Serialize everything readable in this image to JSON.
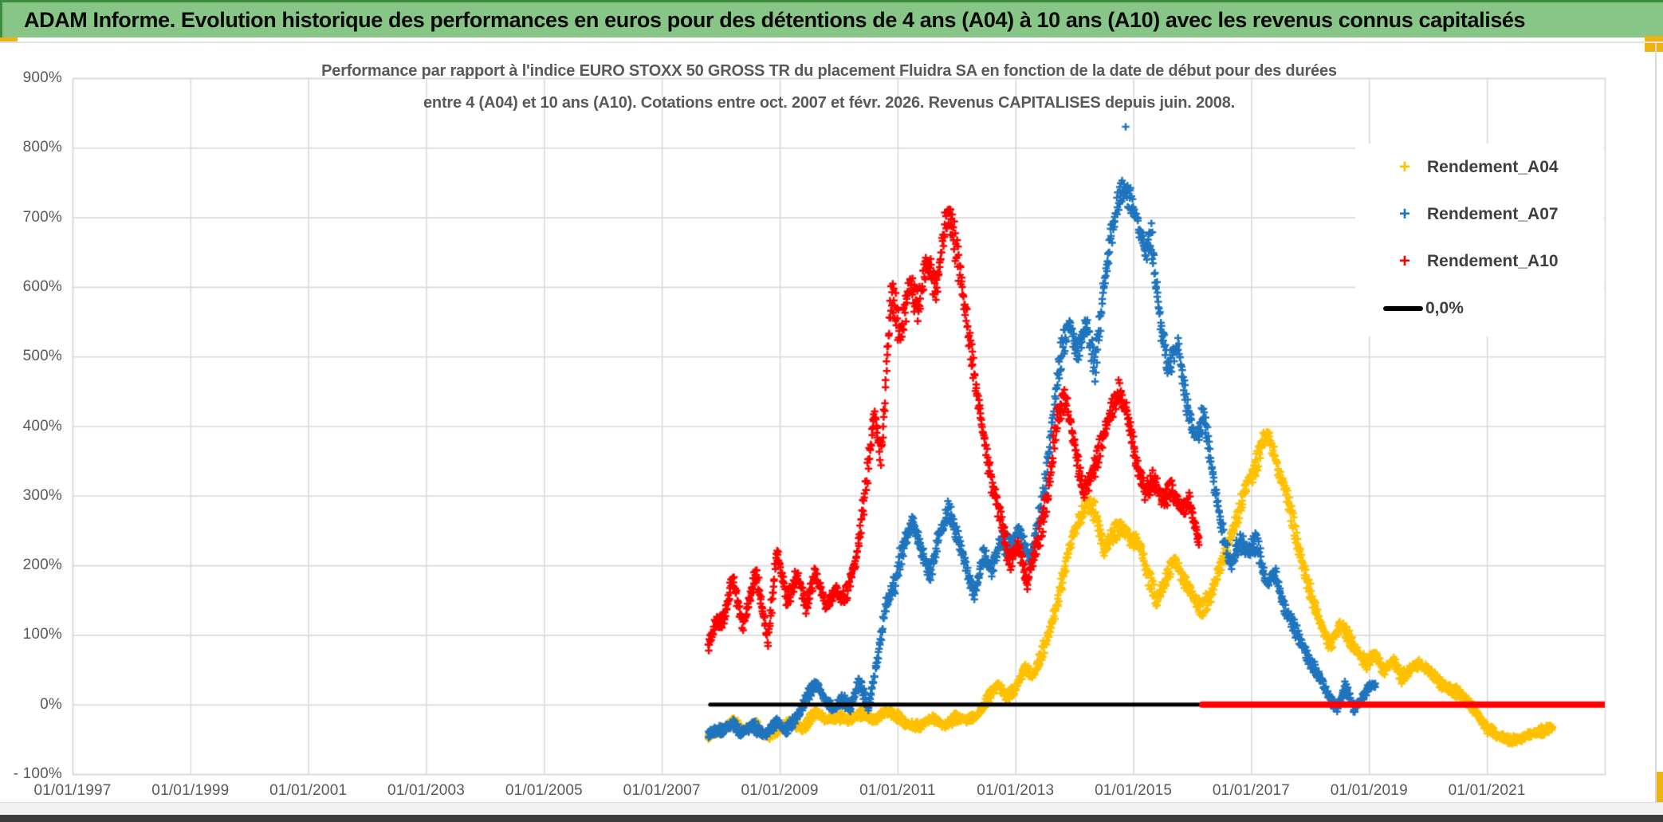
{
  "banner": {
    "title": "ADAM Informe. Evolution historique des performances en euros pour des détentions de 4 ans (A04) à 10 ans (A10) avec les revenus connus capitalisés"
  },
  "colors": {
    "banner_bg": "#87C687",
    "banner_border": "#3C8C40",
    "accent_gold": "#EFB30E",
    "grid": "#D9D9D9",
    "tick_text": "#595959",
    "title_text": "#595959",
    "legend_text": "#3F3F3F",
    "series_a04": "#FFC000",
    "series_a07": "#1F74BD",
    "series_a10": "#FF0000",
    "zero_line": "#000000"
  },
  "chart_data": {
    "type": "scatter",
    "title_line1": "Performance par rapport à l'indice EURO STOXX 50 GROSS TR  du placement Fluidra SA en fonction de la date de début pour des durées",
    "title_line2": "entre 4 (A04) et 10 ans (A10). Cotations entre oct. 2007 et févr. 2026. Revenus CAPITALISES depuis juin. 2008.",
    "x_axis": {
      "tick_labels": [
        "01/01/1997",
        "01/01/1999",
        "01/01/2001",
        "01/01/2003",
        "01/01/2005",
        "01/01/2007",
        "01/01/2009",
        "01/01/2011",
        "01/01/2013",
        "01/01/2015",
        "01/01/2017",
        "01/01/2019",
        "01/01/2021"
      ],
      "start_year": 1997,
      "end_year": 2023,
      "tick_step_years": 2,
      "grid": true
    },
    "y_axis": {
      "tick_labels": [
        "900%",
        "800%",
        "700%",
        "600%",
        "500%",
        "400%",
        "300%",
        "200%",
        "100%",
        "0%",
        "- 100%"
      ],
      "min": -100,
      "max": 900,
      "step": 100,
      "unit": "%",
      "grid": true
    },
    "legend": [
      {
        "label": "Rendement_A04",
        "marker": "+",
        "color": "#FFC000"
      },
      {
        "label": "Rendement_A07",
        "marker": "+",
        "color": "#1F74BD"
      },
      {
        "label": "Rendement_A10",
        "marker": "+",
        "color": "#FF0000"
      },
      {
        "label": "0,0%",
        "marker": "line",
        "color": "#000000"
      }
    ],
    "series": [
      {
        "name": "Rendement_A04",
        "color": "#FFC000",
        "points": [
          [
            2007.79,
            -48,
            6
          ],
          [
            2008.0,
            -38,
            7
          ],
          [
            2008.2,
            -25,
            8
          ],
          [
            2008.4,
            -40,
            7
          ],
          [
            2008.6,
            -30,
            8
          ],
          [
            2008.8,
            -45,
            7
          ],
          [
            2009.0,
            -35,
            8
          ],
          [
            2009.2,
            -22,
            8
          ],
          [
            2009.4,
            -30,
            8
          ],
          [
            2009.6,
            -12,
            8
          ],
          [
            2009.8,
            -22,
            8
          ],
          [
            2010.0,
            -18,
            8
          ],
          [
            2010.2,
            -25,
            8
          ],
          [
            2010.4,
            -15,
            8
          ],
          [
            2010.6,
            -22,
            8
          ],
          [
            2010.8,
            -12,
            8
          ],
          [
            2011.0,
            -18,
            8
          ],
          [
            2011.2,
            -25,
            8
          ],
          [
            2011.4,
            -30,
            7
          ],
          [
            2011.6,
            -18,
            8
          ],
          [
            2011.8,
            -28,
            7
          ],
          [
            2012.0,
            -20,
            8
          ],
          [
            2012.2,
            -25,
            8
          ],
          [
            2012.4,
            -10,
            8
          ],
          [
            2012.55,
            10,
            9
          ],
          [
            2012.7,
            25,
            10
          ],
          [
            2012.85,
            10,
            9
          ],
          [
            2013.0,
            25,
            10
          ],
          [
            2013.15,
            55,
            11
          ],
          [
            2013.3,
            40,
            10
          ],
          [
            2013.5,
            90,
            12
          ],
          [
            2013.7,
            150,
            14
          ],
          [
            2013.9,
            220,
            16
          ],
          [
            2014.05,
            260,
            16
          ],
          [
            2014.2,
            295,
            16
          ],
          [
            2014.35,
            275,
            16
          ],
          [
            2014.5,
            215,
            16
          ],
          [
            2014.65,
            240,
            16
          ],
          [
            2014.8,
            255,
            16
          ],
          [
            2014.95,
            235,
            16
          ],
          [
            2015.1,
            225,
            16
          ],
          [
            2015.25,
            185,
            14
          ],
          [
            2015.4,
            155,
            14
          ],
          [
            2015.55,
            185,
            14
          ],
          [
            2015.7,
            210,
            14
          ],
          [
            2015.85,
            180,
            14
          ],
          [
            2016.0,
            165,
            14
          ],
          [
            2016.15,
            140,
            14
          ],
          [
            2016.3,
            150,
            14
          ],
          [
            2016.45,
            190,
            14
          ],
          [
            2016.6,
            225,
            16
          ],
          [
            2016.75,
            265,
            16
          ],
          [
            2016.9,
            300,
            16
          ],
          [
            2017.05,
            330,
            16
          ],
          [
            2017.2,
            380,
            16
          ],
          [
            2017.3,
            390,
            14
          ],
          [
            2017.45,
            340,
            16
          ],
          [
            2017.6,
            300,
            16
          ],
          [
            2017.75,
            250,
            16
          ],
          [
            2017.9,
            200,
            16
          ],
          [
            2018.05,
            150,
            14
          ],
          [
            2018.2,
            110,
            13
          ],
          [
            2018.35,
            85,
            12
          ],
          [
            2018.5,
            120,
            12
          ],
          [
            2018.65,
            95,
            12
          ],
          [
            2018.8,
            70,
            12
          ],
          [
            2018.95,
            55,
            11
          ],
          [
            2019.1,
            75,
            11
          ],
          [
            2019.25,
            45,
            10
          ],
          [
            2019.4,
            60,
            10
          ],
          [
            2019.55,
            40,
            10
          ],
          [
            2019.7,
            55,
            10
          ],
          [
            2019.85,
            60,
            10
          ],
          [
            2020.0,
            50,
            10
          ],
          [
            2020.2,
            35,
            10
          ],
          [
            2020.4,
            25,
            9
          ],
          [
            2020.6,
            10,
            9
          ],
          [
            2020.8,
            -10,
            9
          ],
          [
            2021.0,
            -35,
            8
          ],
          [
            2021.2,
            -50,
            7
          ],
          [
            2021.4,
            -52,
            7
          ],
          [
            2021.6,
            -48,
            7
          ],
          [
            2021.8,
            -42,
            7
          ],
          [
            2022.0,
            -35,
            7
          ],
          [
            2022.12,
            -30,
            6
          ]
        ]
      },
      {
        "name": "Rendement_A07",
        "color": "#1F74BD",
        "points": [
          [
            2007.79,
            -45,
            8
          ],
          [
            2008.0,
            -38,
            9
          ],
          [
            2008.2,
            -28,
            9
          ],
          [
            2008.35,
            -45,
            8
          ],
          [
            2008.55,
            -32,
            9
          ],
          [
            2008.75,
            -42,
            8
          ],
          [
            2008.95,
            -25,
            9
          ],
          [
            2009.1,
            -38,
            8
          ],
          [
            2009.3,
            -12,
            9
          ],
          [
            2009.5,
            20,
            10
          ],
          [
            2009.62,
            30,
            10
          ],
          [
            2009.75,
            10,
            10
          ],
          [
            2009.9,
            -5,
            9
          ],
          [
            2010.05,
            8,
            10
          ],
          [
            2010.2,
            -8,
            9
          ],
          [
            2010.35,
            30,
            10
          ],
          [
            2010.5,
            -5,
            10
          ],
          [
            2010.65,
            60,
            12
          ],
          [
            2010.8,
            140,
            14
          ],
          [
            2010.95,
            170,
            16
          ],
          [
            2011.1,
            235,
            18
          ],
          [
            2011.25,
            275,
            18
          ],
          [
            2011.4,
            225,
            16
          ],
          [
            2011.55,
            185,
            16
          ],
          [
            2011.7,
            250,
            18
          ],
          [
            2011.85,
            285,
            18
          ],
          [
            2012.0,
            240,
            16
          ],
          [
            2012.15,
            195,
            16
          ],
          [
            2012.3,
            155,
            14
          ],
          [
            2012.45,
            215,
            16
          ],
          [
            2012.6,
            185,
            16
          ],
          [
            2012.75,
            230,
            16
          ],
          [
            2012.9,
            225,
            16
          ],
          [
            2013.05,
            255,
            16
          ],
          [
            2013.25,
            205,
            16
          ],
          [
            2013.45,
            290,
            18
          ],
          [
            2013.6,
            400,
            20
          ],
          [
            2013.75,
            500,
            22
          ],
          [
            2013.9,
            545,
            22
          ],
          [
            2014.05,
            505,
            22
          ],
          [
            2014.2,
            555,
            22
          ],
          [
            2014.35,
            480,
            22
          ],
          [
            2014.5,
            590,
            24
          ],
          [
            2014.65,
            680,
            24
          ],
          [
            2014.8,
            740,
            26
          ],
          [
            2014.92,
            730,
            26
          ],
          [
            2015.05,
            690,
            24
          ],
          [
            2015.2,
            645,
            22
          ],
          [
            2015.3,
            680,
            22
          ],
          [
            2015.45,
            560,
            24
          ],
          [
            2015.6,
            485,
            22
          ],
          [
            2015.75,
            520,
            20
          ],
          [
            2015.9,
            440,
            22
          ],
          [
            2016.05,
            390,
            20
          ],
          [
            2016.2,
            420,
            18
          ],
          [
            2016.35,
            320,
            18
          ],
          [
            2016.5,
            250,
            18
          ],
          [
            2016.65,
            200,
            16
          ],
          [
            2016.8,
            230,
            16
          ],
          [
            2016.95,
            210,
            16
          ],
          [
            2017.1,
            230,
            16
          ],
          [
            2017.25,
            175,
            14
          ],
          [
            2017.4,
            190,
            14
          ],
          [
            2017.55,
            140,
            14
          ],
          [
            2017.7,
            120,
            12
          ],
          [
            2017.85,
            95,
            12
          ],
          [
            2018.0,
            65,
            12
          ],
          [
            2018.15,
            40,
            10
          ],
          [
            2018.3,
            15,
            10
          ],
          [
            2018.45,
            -5,
            9
          ],
          [
            2018.6,
            25,
            10
          ],
          [
            2018.75,
            -12,
            9
          ],
          [
            2018.9,
            10,
            9
          ],
          [
            2019.0,
            25,
            8
          ],
          [
            2019.12,
            28,
            7
          ]
        ]
      },
      {
        "name": "Rendement_A10",
        "color": "#FF0000",
        "points": [
          [
            2007.79,
            80,
            12
          ],
          [
            2007.9,
            110,
            14
          ],
          [
            2008.05,
            120,
            15
          ],
          [
            2008.2,
            180,
            16
          ],
          [
            2008.38,
            105,
            14
          ],
          [
            2008.6,
            190,
            16
          ],
          [
            2008.8,
            95,
            14
          ],
          [
            2008.95,
            220,
            16
          ],
          [
            2009.12,
            150,
            15
          ],
          [
            2009.3,
            195,
            16
          ],
          [
            2009.45,
            145,
            14
          ],
          [
            2009.6,
            190,
            15
          ],
          [
            2009.78,
            140,
            14
          ],
          [
            2009.95,
            165,
            14
          ],
          [
            2010.1,
            150,
            14
          ],
          [
            2010.3,
            200,
            16
          ],
          [
            2010.45,
            300,
            20
          ],
          [
            2010.6,
            420,
            24
          ],
          [
            2010.72,
            350,
            22
          ],
          [
            2010.9,
            590,
            30
          ],
          [
            2011.05,
            530,
            28
          ],
          [
            2011.2,
            620,
            30
          ],
          [
            2011.35,
            575,
            28
          ],
          [
            2011.5,
            640,
            28
          ],
          [
            2011.65,
            600,
            26
          ],
          [
            2011.8,
            700,
            28
          ],
          [
            2011.88,
            715,
            28
          ],
          [
            2012.0,
            640,
            28
          ],
          [
            2012.15,
            560,
            26
          ],
          [
            2012.3,
            470,
            24
          ],
          [
            2012.45,
            390,
            22
          ],
          [
            2012.6,
            310,
            22
          ],
          [
            2012.75,
            255,
            20
          ],
          [
            2012.9,
            205,
            18
          ],
          [
            2013.05,
            235,
            18
          ],
          [
            2013.2,
            175,
            16
          ],
          [
            2013.4,
            240,
            18
          ],
          [
            2013.55,
            310,
            20
          ],
          [
            2013.7,
            420,
            22
          ],
          [
            2013.85,
            440,
            20
          ],
          [
            2014.0,
            370,
            20
          ],
          [
            2014.15,
            310,
            20
          ],
          [
            2014.35,
            340,
            20
          ],
          [
            2014.55,
            390,
            22
          ],
          [
            2014.75,
            450,
            20
          ],
          [
            2014.9,
            420,
            20
          ],
          [
            2015.05,
            340,
            20
          ],
          [
            2015.2,
            300,
            18
          ],
          [
            2015.35,
            330,
            18
          ],
          [
            2015.5,
            300,
            18
          ],
          [
            2015.65,
            310,
            18
          ],
          [
            2015.8,
            280,
            18
          ],
          [
            2015.95,
            300,
            16
          ],
          [
            2016.12,
            235,
            14
          ]
        ]
      }
    ],
    "outliers": [
      {
        "series": "Rendement_A07",
        "x": 2014.87,
        "y": 830
      }
    ],
    "zero_lines": [
      {
        "color": "#000000",
        "from": 2007.82,
        "to": 2016.17,
        "width": 5
      },
      {
        "color": "#FF0000",
        "from": 2016.17,
        "to": 2023.02,
        "width": 8
      }
    ]
  }
}
